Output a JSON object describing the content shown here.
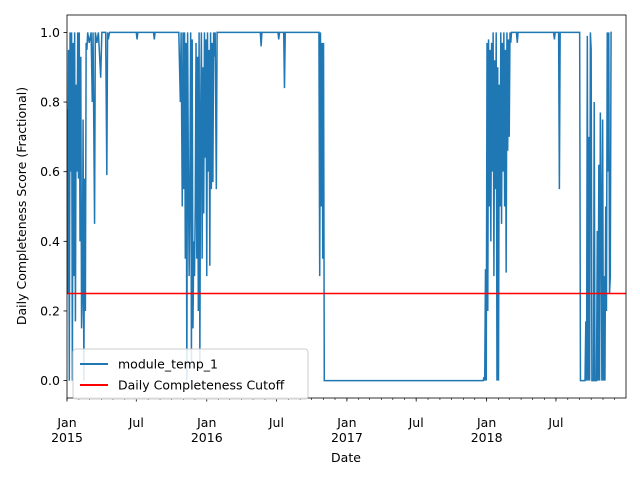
{
  "chart_data": {
    "type": "line",
    "title": "",
    "xlabel": "Date",
    "ylabel": "Daily Completeness Score (Fractional)",
    "xlim": [
      "2015-01-01",
      "2018-12-31"
    ],
    "ylim": [
      -0.05,
      1.05
    ],
    "yticks": [
      0.0,
      0.2,
      0.4,
      0.6,
      0.8,
      1.0
    ],
    "ytick_labels": [
      "0.0",
      "0.2",
      "0.4",
      "0.6",
      "0.8",
      "1.0"
    ],
    "xticks": [
      {
        "date": "2015-01-01",
        "label": "Jan",
        "sublabel": "2015"
      },
      {
        "date": "2015-07-01",
        "label": "Jul",
        "sublabel": ""
      },
      {
        "date": "2016-01-01",
        "label": "Jan",
        "sublabel": "2016"
      },
      {
        "date": "2016-07-01",
        "label": "Jul",
        "sublabel": ""
      },
      {
        "date": "2017-01-01",
        "label": "Jan",
        "sublabel": "2017"
      },
      {
        "date": "2017-07-01",
        "label": "Jul",
        "sublabel": ""
      },
      {
        "date": "2018-01-01",
        "label": "Jan",
        "sublabel": "2018"
      },
      {
        "date": "2018-07-01",
        "label": "Jul",
        "sublabel": ""
      }
    ],
    "grid": false,
    "legend_position": "lower-left",
    "series": [
      {
        "name": "module_temp_1",
        "color": "#1f77b4",
        "points": [
          [
            "2015-01-01",
            0.78
          ],
          [
            "2015-01-03",
            0.25
          ],
          [
            "2015-01-05",
            0.95
          ],
          [
            "2015-01-07",
            0.0
          ],
          [
            "2015-01-09",
            1.0
          ],
          [
            "2015-01-11",
            0.6
          ],
          [
            "2015-01-13",
            1.0
          ],
          [
            "2015-01-15",
            0.0
          ],
          [
            "2015-01-17",
            0.97
          ],
          [
            "2015-01-19",
            0.3
          ],
          [
            "2015-01-21",
            1.0
          ],
          [
            "2015-01-23",
            0.17
          ],
          [
            "2015-01-25",
            0.85
          ],
          [
            "2015-01-27",
            0.6
          ],
          [
            "2015-01-29",
            1.0
          ],
          [
            "2015-01-31",
            0.58
          ],
          [
            "2015-02-02",
            1.0
          ],
          [
            "2015-02-04",
            0.4
          ],
          [
            "2015-02-06",
            0.93
          ],
          [
            "2015-02-08",
            0.15
          ],
          [
            "2015-02-10",
            0.25
          ],
          [
            "2015-02-12",
            0.75
          ],
          [
            "2015-02-14",
            0.0
          ],
          [
            "2015-02-16",
            0.58
          ],
          [
            "2015-02-18",
            0.2
          ],
          [
            "2015-02-20",
            0.97
          ],
          [
            "2015-02-22",
            0.95
          ],
          [
            "2015-02-24",
            1.0
          ],
          [
            "2015-02-28",
            0.97
          ],
          [
            "2015-03-05",
            1.0
          ],
          [
            "2015-03-08",
            0.8
          ],
          [
            "2015-03-10",
            1.0
          ],
          [
            "2015-03-14",
            0.45
          ],
          [
            "2015-03-16",
            1.0
          ],
          [
            "2015-03-20",
            0.97
          ],
          [
            "2015-03-24",
            1.0
          ],
          [
            "2015-03-30",
            0.87
          ],
          [
            "2015-04-02",
            1.0
          ],
          [
            "2015-04-12",
            1.0
          ],
          [
            "2015-04-15",
            0.59
          ],
          [
            "2015-04-17",
            1.0
          ],
          [
            "2015-04-19",
            0.98
          ],
          [
            "2015-04-22",
            1.0
          ],
          [
            "2015-05-05",
            1.0
          ],
          [
            "2015-06-01",
            1.0
          ],
          [
            "2015-07-01",
            1.0
          ],
          [
            "2015-07-03",
            0.98
          ],
          [
            "2015-07-05",
            1.0
          ],
          [
            "2015-08-15",
            1.0
          ],
          [
            "2015-08-17",
            0.98
          ],
          [
            "2015-08-19",
            1.0
          ],
          [
            "2015-10-20",
            1.0
          ],
          [
            "2015-10-24",
            0.8
          ],
          [
            "2015-10-26",
            1.0
          ],
          [
            "2015-10-29",
            0.5
          ],
          [
            "2015-10-31",
            1.0
          ],
          [
            "2015-11-02",
            0.55
          ],
          [
            "2015-11-04",
            1.0
          ],
          [
            "2015-11-06",
            0.35
          ],
          [
            "2015-11-08",
            0.97
          ],
          [
            "2015-11-10",
            0.0
          ],
          [
            "2015-11-12",
            1.0
          ],
          [
            "2015-11-14",
            0.6
          ],
          [
            "2015-11-16",
            0.3
          ],
          [
            "2015-11-18",
            0.58
          ],
          [
            "2015-11-20",
            1.0
          ],
          [
            "2015-11-22",
            0.05
          ],
          [
            "2015-11-24",
            0.98
          ],
          [
            "2015-11-26",
            0.15
          ],
          [
            "2015-11-28",
            0.4
          ],
          [
            "2015-11-30",
            0.3
          ],
          [
            "2015-12-02",
            0.5
          ],
          [
            "2015-12-04",
            0.97
          ],
          [
            "2015-12-06",
            0.35
          ],
          [
            "2015-12-08",
            0.93
          ],
          [
            "2015-12-10",
            0.2
          ],
          [
            "2015-12-12",
            1.0
          ],
          [
            "2015-12-14",
            0.05
          ],
          [
            "2015-12-16",
            0.75
          ],
          [
            "2015-12-18",
            1.0
          ],
          [
            "2015-12-20",
            0.35
          ],
          [
            "2015-12-22",
            0.9
          ],
          [
            "2015-12-24",
            0.48
          ],
          [
            "2015-12-26",
            1.0
          ],
          [
            "2015-12-28",
            0.64
          ],
          [
            "2015-12-30",
            0.98
          ],
          [
            "2016-01-01",
            0.3
          ],
          [
            "2016-01-03",
            1.0
          ],
          [
            "2016-01-05",
            0.6
          ],
          [
            "2016-01-07",
            0.95
          ],
          [
            "2016-01-09",
            0.33
          ],
          [
            "2016-01-11",
            1.0
          ],
          [
            "2016-01-13",
            0.55
          ],
          [
            "2016-01-15",
            0.97
          ],
          [
            "2016-01-17",
            0.57
          ],
          [
            "2016-01-19",
            1.0
          ],
          [
            "2016-01-21",
            0.93
          ],
          [
            "2016-01-23",
            1.0
          ],
          [
            "2016-01-26",
            0.55
          ],
          [
            "2016-01-28",
            1.0
          ],
          [
            "2016-02-05",
            1.0
          ],
          [
            "2016-03-01",
            1.0
          ],
          [
            "2016-05-20",
            1.0
          ],
          [
            "2016-05-22",
            0.96
          ],
          [
            "2016-05-24",
            1.0
          ],
          [
            "2016-07-05",
            1.0
          ],
          [
            "2016-07-07",
            0.98
          ],
          [
            "2016-07-09",
            1.0
          ],
          [
            "2016-07-20",
            1.0
          ],
          [
            "2016-07-22",
            0.84
          ],
          [
            "2016-07-24",
            1.0
          ],
          [
            "2016-09-10",
            1.0
          ],
          [
            "2016-10-05",
            1.0
          ],
          [
            "2016-10-20",
            1.0
          ],
          [
            "2016-10-22",
            0.3
          ],
          [
            "2016-10-24",
            1.0
          ],
          [
            "2016-10-26",
            0.5
          ],
          [
            "2016-10-28",
            0.97
          ],
          [
            "2016-10-30",
            0.35
          ],
          [
            "2016-11-01",
            0.97
          ],
          [
            "2016-11-03",
            0.0
          ],
          [
            "2016-11-06",
            0.0
          ],
          [
            "2017-12-23",
            0.0
          ],
          [
            "2017-12-25",
            0.01
          ],
          [
            "2017-12-27",
            0.0
          ],
          [
            "2017-12-29",
            0.32
          ],
          [
            "2017-12-31",
            0.0
          ],
          [
            "2018-01-02",
            0.97
          ],
          [
            "2018-01-04",
            0.2
          ],
          [
            "2018-01-06",
            0.98
          ],
          [
            "2018-01-08",
            0.5
          ],
          [
            "2018-01-10",
            0.95
          ],
          [
            "2018-01-12",
            0.4
          ],
          [
            "2018-01-14",
            0.97
          ],
          [
            "2018-01-16",
            0.6
          ],
          [
            "2018-01-18",
            1.0
          ],
          [
            "2018-01-20",
            0.3
          ],
          [
            "2018-01-22",
            0.92
          ],
          [
            "2018-01-24",
            0.55
          ],
          [
            "2018-01-26",
            1.0
          ],
          [
            "2018-01-28",
            0.0
          ],
          [
            "2018-01-30",
            0.9
          ],
          [
            "2018-02-01",
            0.0
          ],
          [
            "2018-02-03",
            0.85
          ],
          [
            "2018-02-05",
            0.5
          ],
          [
            "2018-02-07",
            1.0
          ],
          [
            "2018-02-09",
            0.45
          ],
          [
            "2018-02-11",
            0.97
          ],
          [
            "2018-02-13",
            0.6
          ],
          [
            "2018-02-15",
            1.0
          ],
          [
            "2018-02-17",
            0.5
          ],
          [
            "2018-02-19",
            0.95
          ],
          [
            "2018-02-21",
            0.31
          ],
          [
            "2018-02-23",
            1.0
          ],
          [
            "2018-02-25",
            0.66
          ],
          [
            "2018-02-27",
            0.98
          ],
          [
            "2018-03-01",
            0.7
          ],
          [
            "2018-03-03",
            1.0
          ],
          [
            "2018-03-05",
            0.97
          ],
          [
            "2018-03-07",
            1.0
          ],
          [
            "2018-03-20",
            1.0
          ],
          [
            "2018-03-22",
            0.97
          ],
          [
            "2018-03-24",
            1.0
          ],
          [
            "2018-06-25",
            1.0
          ],
          [
            "2018-06-27",
            0.98
          ],
          [
            "2018-06-29",
            1.0
          ],
          [
            "2018-07-08",
            1.0
          ],
          [
            "2018-07-10",
            0.55
          ],
          [
            "2018-07-12",
            1.0
          ],
          [
            "2018-09-01",
            1.0
          ],
          [
            "2018-09-03",
            0.0
          ],
          [
            "2018-09-15",
            0.0
          ],
          [
            "2018-09-17",
            0.17
          ],
          [
            "2018-09-19",
            0.0
          ],
          [
            "2018-09-21",
            0.99
          ],
          [
            "2018-09-23",
            0.0
          ],
          [
            "2018-09-25",
            0.7
          ],
          [
            "2018-09-27",
            0.0
          ],
          [
            "2018-09-29",
            1.0
          ],
          [
            "2018-10-01",
            0.95
          ],
          [
            "2018-10-03",
            0.0
          ],
          [
            "2018-10-07",
            0.0
          ],
          [
            "2018-10-09",
            0.8
          ],
          [
            "2018-10-11",
            0.0
          ],
          [
            "2018-10-15",
            0.0
          ],
          [
            "2018-10-17",
            0.43
          ],
          [
            "2018-10-19",
            0.0
          ],
          [
            "2018-10-21",
            0.62
          ],
          [
            "2018-10-23",
            0.0
          ],
          [
            "2018-10-25",
            0.77
          ],
          [
            "2018-10-27",
            0.5
          ],
          [
            "2018-10-29",
            0.0
          ],
          [
            "2018-10-31",
            0.75
          ],
          [
            "2018-11-02",
            0.0
          ],
          [
            "2018-11-04",
            0.3
          ],
          [
            "2018-11-06",
            0.0
          ],
          [
            "2018-11-08",
            0.5
          ],
          [
            "2018-11-10",
            0.2
          ],
          [
            "2018-11-12",
            1.0
          ],
          [
            "2018-11-14",
            0.6
          ],
          [
            "2018-11-16",
            1.0
          ],
          [
            "2018-11-18",
            0.25
          ],
          [
            "2018-11-20",
            0.3
          ],
          [
            "2018-11-22",
            1.0
          ],
          [
            "2018-11-24",
            1.0
          ]
        ]
      },
      {
        "name": "Daily Completeness Cutoff",
        "color": "#ff0000",
        "points": [
          [
            "2015-01-01",
            0.25
          ],
          [
            "2018-12-31",
            0.25
          ]
        ]
      }
    ]
  }
}
